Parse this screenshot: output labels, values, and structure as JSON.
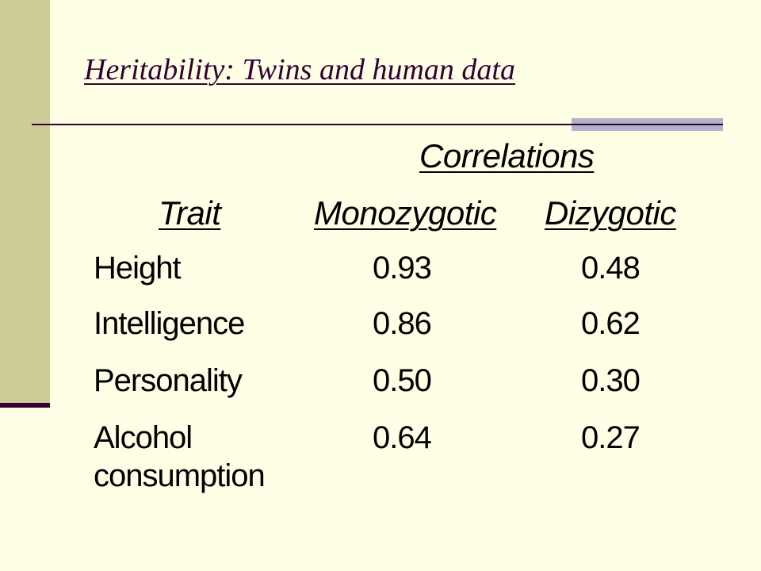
{
  "slide": {
    "title": "Heritability: Twins and human data",
    "colors": {
      "background": "#FFFFE5",
      "side_bar": "#CCCC99",
      "accent_dark": "#330033",
      "rule_accent": "#B3B3CC",
      "text": "#000000"
    }
  },
  "table": {
    "group_header": "Correlations",
    "headers": {
      "trait": "Trait",
      "monozygotic": "Monozygotic",
      "dizygotic": "Dizygotic"
    },
    "rows": [
      {
        "trait": "Height",
        "trait_line2": "",
        "monozygotic": "0.93",
        "dizygotic": "0.48"
      },
      {
        "trait": "Intelligence",
        "trait_line2": "",
        "monozygotic": "0.86",
        "dizygotic": "0.62"
      },
      {
        "trait": "Personality",
        "trait_line2": "",
        "monozygotic": "0.50",
        "dizygotic": "0.30"
      },
      {
        "trait": "Alcohol",
        "trait_line2": "consumption",
        "monozygotic": "0.64",
        "dizygotic": "0.27"
      }
    ]
  }
}
